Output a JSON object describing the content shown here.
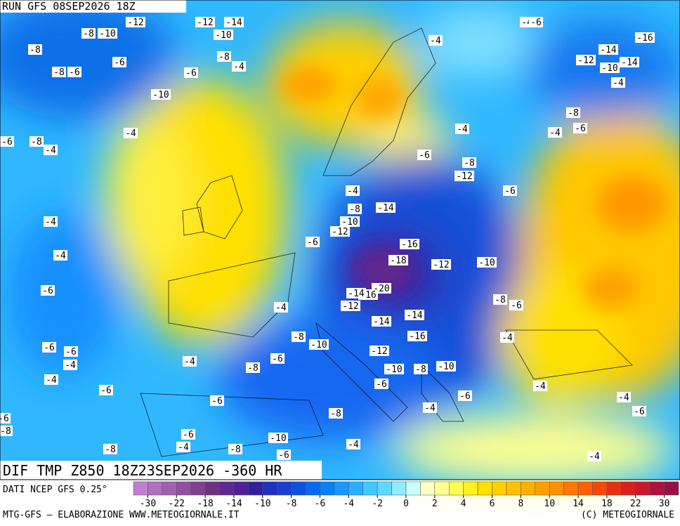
{
  "header": {
    "run": "RUN GFS 08SEP2026 18Z"
  },
  "map": {
    "title": "DIF TMP Z850 18Z23SEP2026 -360 HR",
    "contour_labels": [
      "-12",
      "-8",
      "-10",
      "-12",
      "-14",
      "-10",
      "-4",
      "-6",
      "-4",
      "-16",
      "-8",
      "-14",
      "-8",
      "-4",
      "-12",
      "-14",
      "-10",
      "-6",
      "-8",
      "-6",
      "-6",
      "-4",
      "-10",
      "-8",
      "-4",
      "-4",
      "-6",
      "-4",
      "-6",
      "-8",
      "-4",
      "-6",
      "-8",
      "-12",
      "-6",
      "-4",
      "-14",
      "-8",
      "-10",
      "-12",
      "-4",
      "-6",
      "-16",
      "-4",
      "-18",
      "-12",
      "-10",
      "-6",
      "-20",
      "-16",
      "-14",
      "-12",
      "-8",
      "-6",
      "-4",
      "-14",
      "-14",
      "-16",
      "-4",
      "-8",
      "-10",
      "-6",
      "-6",
      "-12",
      "-4",
      "-6",
      "-8",
      "-4",
      "-10",
      "-8",
      "-10",
      "-4",
      "-6",
      "-6",
      "-4",
      "-6",
      "-6",
      "-4",
      "-4",
      "-6",
      "-8",
      "-6",
      "-10",
      "-4",
      "-8",
      "-8",
      "-4",
      "-6",
      "-4",
      "-6",
      "-8"
    ]
  },
  "colorbar": {
    "source": "DATI NCEP GFS 0.25°",
    "colors": [
      "#c080d0",
      "#b070c0",
      "#a060b0",
      "#9050a0",
      "#804090",
      "#703080",
      "#602890",
      "#502098",
      "#3020a0",
      "#2030c0",
      "#1840d0",
      "#1050e0",
      "#0868f0",
      "#0880f8",
      "#1898ff",
      "#28b0ff",
      "#40c8ff",
      "#60d8ff",
      "#90ecff",
      "#c8ffff",
      "#ffffc8",
      "#ffff90",
      "#ffff50",
      "#fff020",
      "#ffe000",
      "#ffd000",
      "#ffc000",
      "#ffb000",
      "#ffa000",
      "#ff9000",
      "#ff7800",
      "#ff6000",
      "#f84800",
      "#e83010",
      "#d82020",
      "#c81830",
      "#b01040",
      "#981048"
    ],
    "ticks": [
      -30,
      -22,
      -18,
      -14,
      -10,
      -8,
      -6,
      -4,
      -2,
      0,
      2,
      4,
      6,
      8,
      10,
      14,
      18,
      22,
      30
    ]
  },
  "footer": {
    "credit": "MTG-GFS — ELABORAZIONE WWW.METEOGIORNALE.IT",
    "copyright": "(C) METEOGIORNALE"
  }
}
